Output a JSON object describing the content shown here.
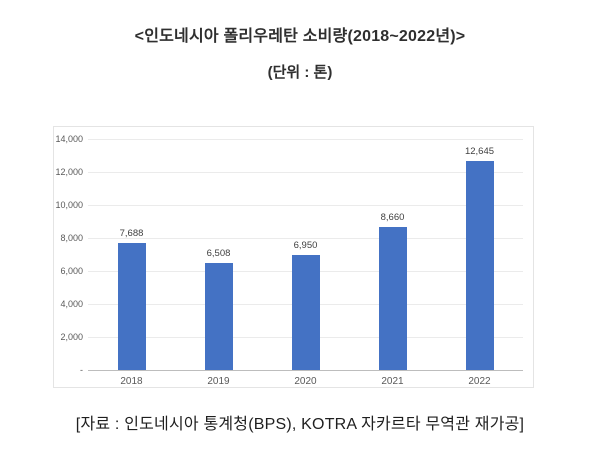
{
  "page": {
    "title": "<인도네시아 폴리우레탄 소비량(2018~2022년)>",
    "unit_label": "(단위 : 톤)",
    "source_caption": "[자료 : 인도네시아 통계청(BPS), KOTRA 자카르타 무역관 재가공]"
  },
  "chart_data": {
    "type": "bar",
    "title": "인도네시아 폴리우레탄 소비량(2018~2022년)",
    "unit": "톤",
    "categories": [
      "2018",
      "2019",
      "2020",
      "2021",
      "2022"
    ],
    "values": [
      7688,
      6508,
      6950,
      8660,
      12645
    ],
    "data_labels": [
      "7,688",
      "6,508",
      "6,950",
      "8,660",
      "12,645"
    ],
    "xlabel": "",
    "ylabel": "",
    "ylim": [
      0,
      14000
    ],
    "ytick_interval": 2000,
    "yticks": [
      "-",
      "2,000",
      "4,000",
      "6,000",
      "8,000",
      "10,000",
      "12,000",
      "14,000"
    ],
    "grid": true,
    "legend_position": "none",
    "bar_color": "#4472C4",
    "grid_color": "#ebebeb",
    "axis_line_color": "#bdbdbd",
    "label_color": "#404040",
    "tick_color": "#595959"
  }
}
